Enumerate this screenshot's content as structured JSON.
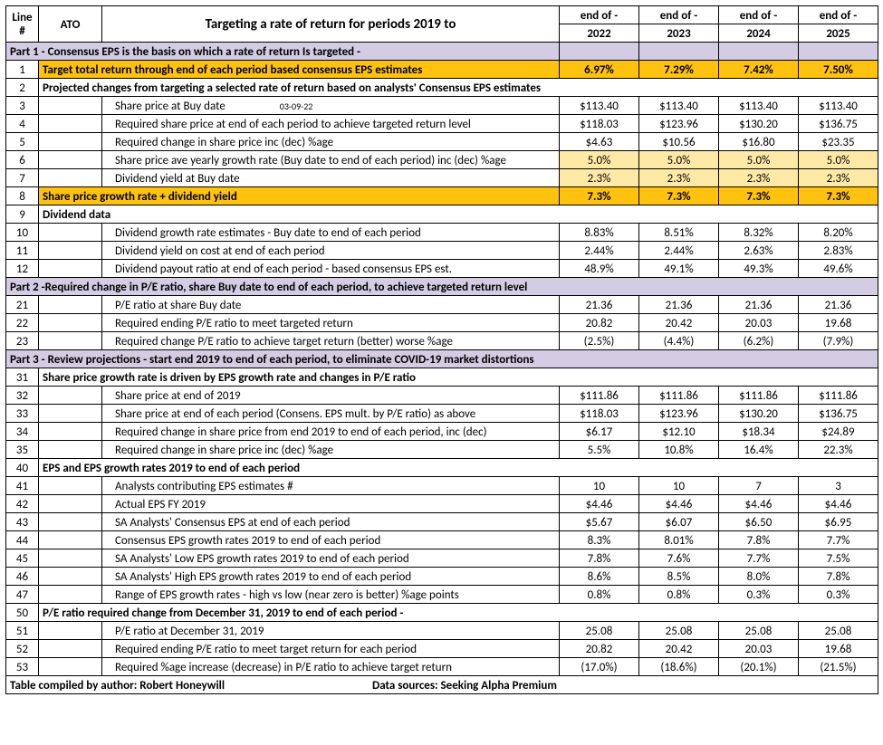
{
  "header": {
    "line_hdr": "Line",
    "line_sub": "#",
    "ato": "ATO",
    "title": "Targeting a rate of return for periods 2019 to",
    "col_prefix": "end of -",
    "years": [
      "2022",
      "2023",
      "2024",
      "2025"
    ]
  },
  "parts": {
    "p1": "Part 1 - Consensus EPS is the basis on which a rate of return Is targeted -",
    "p2": "Part 2 -Required change in P/E ratio, share Buy date to end of each period, to achieve targeted return level",
    "p3": "Part 3 - Review projections - start end 2019 to end of each period, to eliminate COVID-19 market distortions"
  },
  "rows": {
    "r1": {
      "n": "1",
      "d": "Target total return through end of each period based consensus EPS estimates",
      "v": [
        "6.97%",
        "7.29%",
        "7.42%",
        "7.50%"
      ],
      "gold": true
    },
    "r2": {
      "n": "2",
      "d": "Projected changes from targeting a selected rate of return based on analysts' Consensus EPS estimates",
      "sub": true
    },
    "r3": {
      "n": "3",
      "d": "Share price at Buy date",
      "note": "03-09-22",
      "v": [
        "$113.40",
        "$113.40",
        "$113.40",
        "$113.40"
      ]
    },
    "r4": {
      "n": "4",
      "d": "Required share price at end of each period to achieve targeted return level",
      "v": [
        "$118.03",
        "$123.96",
        "$130.20",
        "$136.75"
      ]
    },
    "r5": {
      "n": "5",
      "d": "Required change in share price inc (dec) %age",
      "v": [
        "$4.63",
        "$10.56",
        "$16.80",
        "$23.35"
      ]
    },
    "r6": {
      "n": "6",
      "d": "Share price ave yearly growth rate (Buy date to end of each period) inc (dec) %age",
      "v": [
        "5.0%",
        "5.0%",
        "5.0%",
        "5.0%"
      ],
      "hl": true
    },
    "r7": {
      "n": "7",
      "d": "Dividend yield at Buy date",
      "v": [
        "2.3%",
        "2.3%",
        "2.3%",
        "2.3%"
      ],
      "hl": true
    },
    "r8": {
      "n": "8",
      "d": "Share price growth rate + dividend yield",
      "v": [
        "7.3%",
        "7.3%",
        "7.3%",
        "7.3%"
      ],
      "gold": true
    },
    "r9": {
      "n": "9",
      "d": "Dividend data",
      "sub": true
    },
    "r10": {
      "n": "10",
      "d": "Dividend growth rate estimates  - Buy date to end of each period",
      "v": [
        "8.83%",
        "8.51%",
        "8.32%",
        "8.20%"
      ]
    },
    "r11": {
      "n": "11",
      "d": "Dividend yield on cost at end of each period",
      "v": [
        "2.44%",
        "2.44%",
        "2.63%",
        "2.83%"
      ]
    },
    "r12": {
      "n": "12",
      "d": "Dividend payout ratio at end of each period - based consensus EPS est.",
      "v": [
        "48.9%",
        "49.1%",
        "49.3%",
        "49.6%"
      ]
    },
    "r21": {
      "n": "21",
      "d": "P/E ratio at share Buy date",
      "v": [
        "21.36",
        "21.36",
        "21.36",
        "21.36"
      ]
    },
    "r22": {
      "n": "22",
      "d": "Required ending P/E ratio to meet targeted return",
      "v": [
        "20.82",
        "20.42",
        "20.03",
        "19.68"
      ]
    },
    "r23": {
      "n": "23",
      "d": "Required change P/E ratio to achieve target return (better) worse %age",
      "v": [
        "(2.5%)",
        "(4.4%)",
        "(6.2%)",
        "(7.9%)"
      ]
    },
    "r31": {
      "n": "31",
      "d": "Share price growth rate is driven by EPS growth rate and changes in P/E ratio",
      "sub": true
    },
    "r32": {
      "n": "32",
      "d": "Share price at end of 2019",
      "v": [
        "$111.86",
        "$111.86",
        "$111.86",
        "$111.86"
      ]
    },
    "r33": {
      "n": "33",
      "d": "Share price at end of each period (Consens. EPS mult. by P/E ratio) as above",
      "v": [
        "$118.03",
        "$123.96",
        "$130.20",
        "$136.75"
      ]
    },
    "r34": {
      "n": "34",
      "d": "Required change in share price from end 2019 to end of each period, inc (dec)",
      "v": [
        "$6.17",
        "$12.10",
        "$18.34",
        "$24.89"
      ]
    },
    "r35": {
      "n": "35",
      "d": "Required change in share price inc (dec) %age",
      "v": [
        "5.5%",
        "10.8%",
        "16.4%",
        "22.3%"
      ]
    },
    "r40": {
      "n": "40",
      "d": "EPS and EPS growth rates 2019 to end of each period",
      "sub": true
    },
    "r41": {
      "n": "41",
      "d": "Analysts contributing EPS estimates #",
      "v": [
        "10",
        "10",
        "7",
        "3"
      ]
    },
    "r42": {
      "n": "42",
      "d": "Actual EPS FY 2019",
      "v": [
        "$4.46",
        "$4.46",
        "$4.46",
        "$4.46"
      ]
    },
    "r43": {
      "n": "43",
      "d": "SA Analysts' Consensus EPS at end of each period",
      "v": [
        "$5.67",
        "$6.07",
        "$6.50",
        "$6.95"
      ]
    },
    "r44": {
      "n": "44",
      "d": "Consensus EPS growth rates 2019 to end of each period",
      "v": [
        "8.3%",
        "8.01%",
        "7.8%",
        "7.7%"
      ]
    },
    "r45": {
      "n": "45",
      "d": "SA Analysts' Low EPS growth rates 2019 to end of each period",
      "v": [
        "7.8%",
        "7.6%",
        "7.7%",
        "7.5%"
      ]
    },
    "r46": {
      "n": "46",
      "d": "SA Analysts' High EPS growth rates 2019 to end of each period",
      "v": [
        "8.6%",
        "8.5%",
        "8.0%",
        "7.8%"
      ]
    },
    "r47": {
      "n": "47",
      "d": "Range of EPS growth rates - high vs low (near zero is better) %age points",
      "v": [
        "0.8%",
        "0.8%",
        "0.3%",
        "0.3%"
      ]
    },
    "r50": {
      "n": "50",
      "d": "P/E ratio required change from December 31, 2019 to end of each period -",
      "sub": true
    },
    "r51": {
      "n": "51",
      "d": "P/E ratio at December 31, 2019",
      "v": [
        "25.08",
        "25.08",
        "25.08",
        "25.08"
      ]
    },
    "r52": {
      "n": "52",
      "d": "Required ending P/E ratio to meet target return for each period",
      "v": [
        "20.82",
        "20.42",
        "20.03",
        "19.68"
      ]
    },
    "r53": {
      "n": "53",
      "d": "Required %age increase (decrease) in P/E ratio to achieve target return",
      "v": [
        "(17.0%)",
        "(18.6%)",
        "(20.1%)",
        "(21.5%)"
      ]
    }
  },
  "footer": {
    "author": "Table compiled by author: Robert Honeywill",
    "source": "Data sources: Seeking Alpha Premium"
  },
  "colors": {
    "part_bg": "#d3cce3",
    "gold_bg": "#ffc20e",
    "goldlite_bg": "#ffe9a6",
    "border": "#000000",
    "text": "#000000",
    "bg": "#ffffff"
  }
}
